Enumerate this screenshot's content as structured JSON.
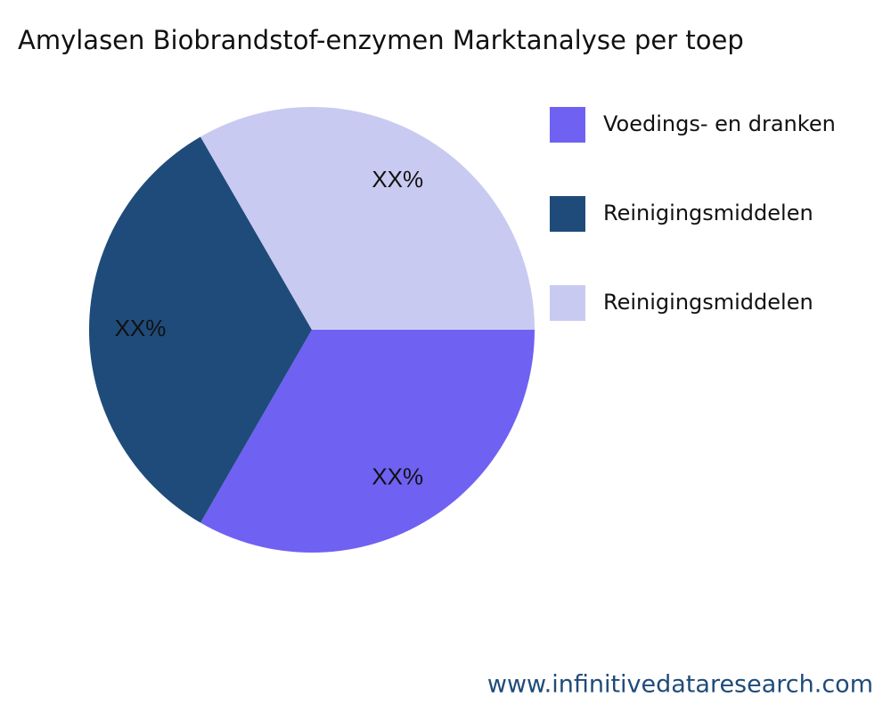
{
  "chart_data": {
    "type": "pie",
    "title": "Amylasen Biobrandstof-enzymen Marktanalyse per toep",
    "categories": [
      "Voedings- en dranken",
      "Reinigingsmiddelen",
      "Reinigingsmiddelen"
    ],
    "values": [
      33.3,
      33.3,
      33.3
    ],
    "value_labels": [
      "XX%",
      "XX%",
      "XX%"
    ],
    "colors": [
      "#6f61f2",
      "#1f4b7a",
      "#c9caf1"
    ]
  },
  "footer": {
    "source": "www.infinitivedataresearch.com"
  }
}
